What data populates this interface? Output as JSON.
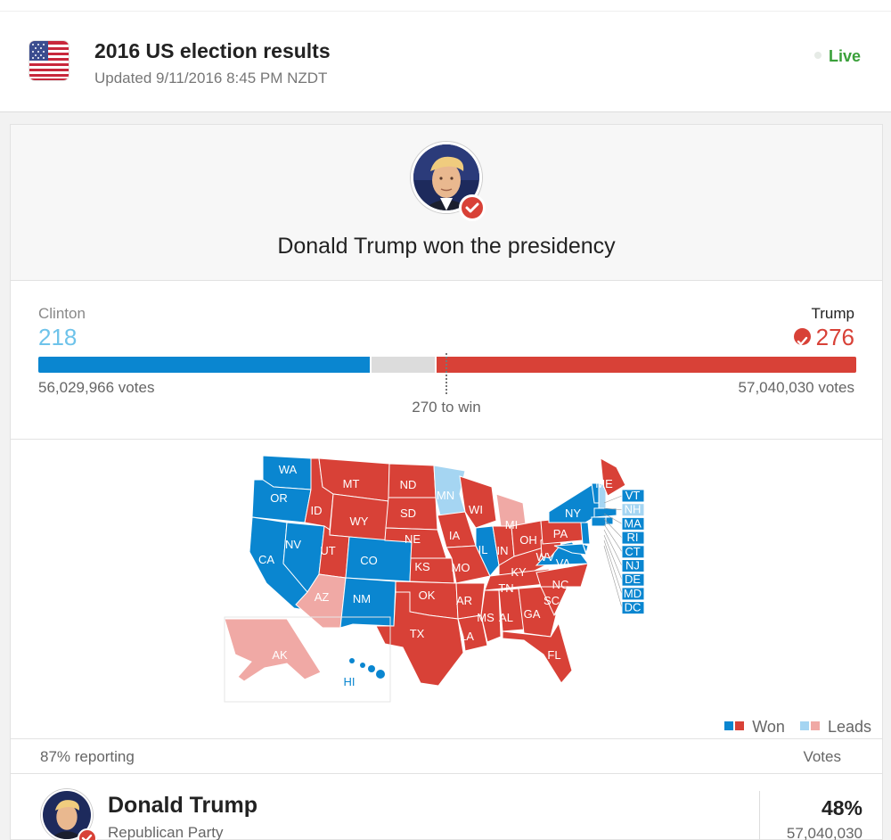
{
  "header": {
    "title": "2016 US election results",
    "updated": "Updated 9/11/2016 8:45 PM NZDT",
    "live_label": "Live",
    "flag_icon": "us-flag-icon"
  },
  "winner": {
    "headline": "Donald Trump won the presidency",
    "badge_icon": "check-icon"
  },
  "tally": {
    "clinton": {
      "name": "Clinton",
      "electoral_votes": "218",
      "popular_votes": "56,029,966 votes",
      "color": "#0a86d0",
      "label_color": "#6ec3ea"
    },
    "trump": {
      "name": "Trump",
      "electoral_votes": "276",
      "popular_votes": "57,040,030 votes",
      "color": "#d84137"
    },
    "to_win_label": "270 to win",
    "total_electoral": 538,
    "win_threshold": 270,
    "clinton_ev": 218,
    "trump_ev": 276
  },
  "map": {
    "colors": {
      "dem_won": "#0a86d0",
      "rep_won": "#d84137",
      "dem_leads": "#a5d5f2",
      "rep_leads": "#f0a9a5"
    },
    "states_dem_won": [
      "WA",
      "OR",
      "CA",
      "NV",
      "CO",
      "NM",
      "IL",
      "VA",
      "NY",
      "VT",
      "MA",
      "RI",
      "CT",
      "NJ",
      "DE",
      "MD",
      "DC",
      "HI"
    ],
    "states_rep_won": [
      "MT",
      "ID",
      "WY",
      "UT",
      "ND",
      "SD",
      "NE",
      "KS",
      "OK",
      "TX",
      "IA",
      "MO",
      "AR",
      "LA",
      "WI",
      "IN",
      "OH",
      "KY",
      "TN",
      "MS",
      "AL",
      "GA",
      "FL",
      "SC",
      "NC",
      "WV",
      "PA",
      "ME"
    ],
    "states_dem_leads": [
      "MN",
      "NH"
    ],
    "states_rep_leads": [
      "AZ",
      "MI",
      "AK"
    ],
    "legend": {
      "won": "Won",
      "leads": "Leads"
    }
  },
  "results": {
    "reporting": "87% reporting",
    "votes_header": "Votes",
    "candidate": {
      "name": "Donald Trump",
      "party": "Republican Party",
      "percent": "48%",
      "votes": "57,040,030"
    }
  }
}
